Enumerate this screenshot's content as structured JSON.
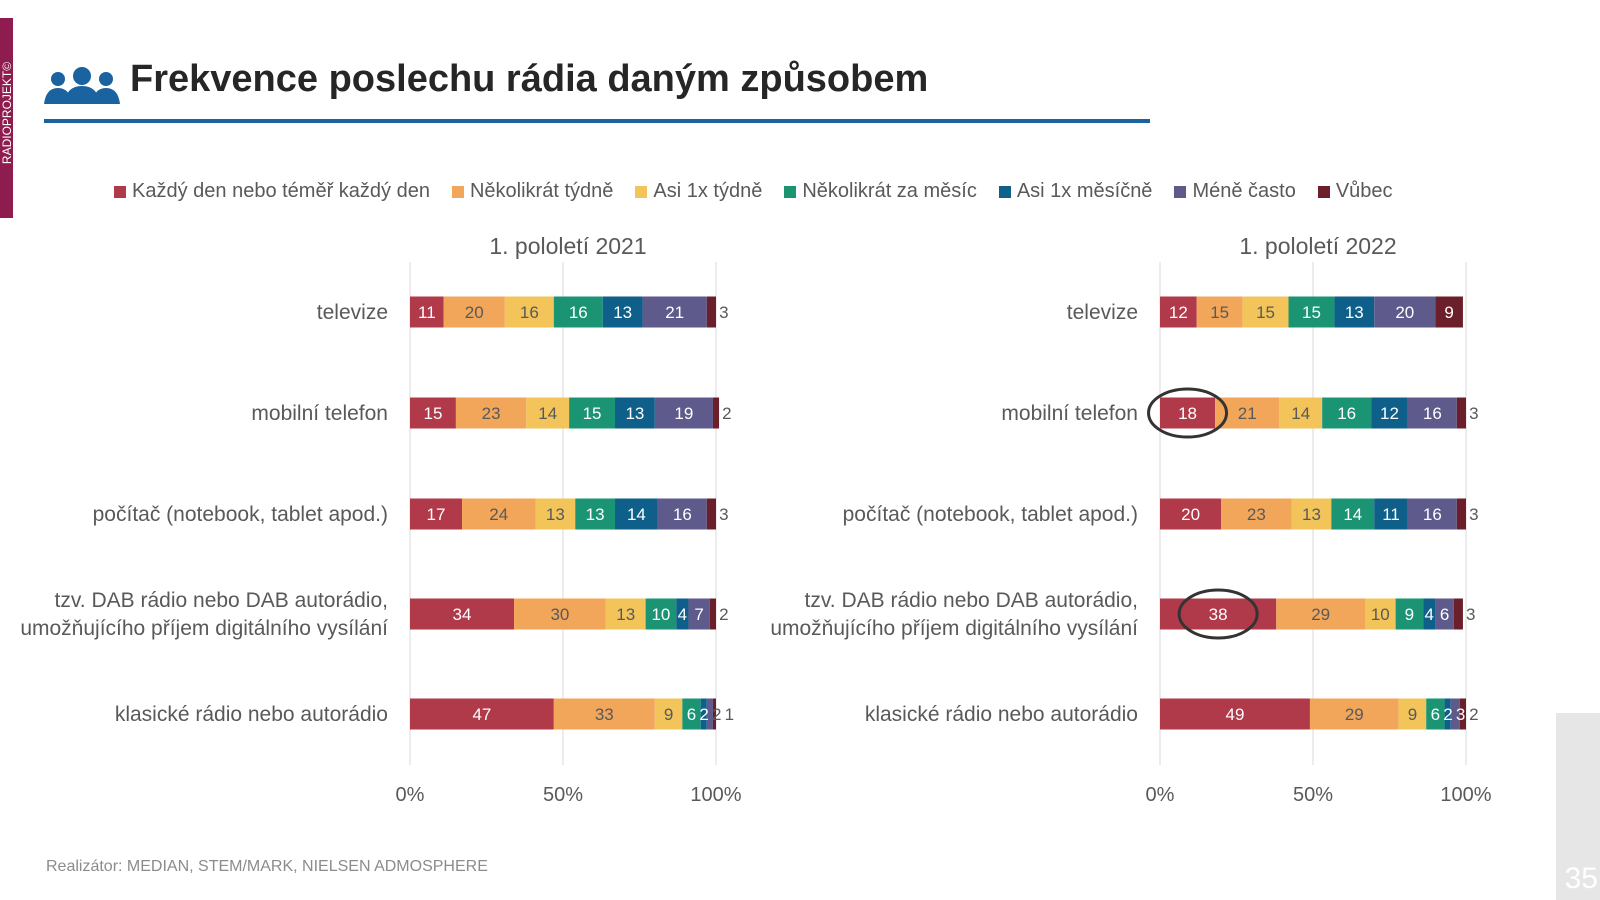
{
  "sidebar_label": "RADIOPROJEKT©",
  "title": "Frekvence poslechu rádia daným způsobem",
  "footer": "Realizátor: MEDIAN, STEM/MARK, NIELSEN ADMOSPHERE",
  "page_number": "35",
  "chart_data": [
    {
      "type": "bar",
      "orientation": "horizontal-stacked-100",
      "title": "1. pololetí 2021",
      "categories": [
        "televize",
        "mobilní telefon",
        "počítač (notebook, tablet apod.)",
        "tzv. DAB rádio nebo DAB autorádio,|umožňujícího příjem digitálního vysílání",
        "klasické rádio nebo autorádio"
      ],
      "series": [
        {
          "name": "Každý den nebo téměř každý den",
          "color": "#b0394a",
          "values": [
            11,
            15,
            17,
            34,
            47
          ]
        },
        {
          "name": "Několikrát týdně",
          "color": "#f2a65a",
          "values": [
            20,
            23,
            24,
            30,
            33
          ]
        },
        {
          "name": "Asi 1x týdně",
          "color": "#f2c45a",
          "values": [
            16,
            14,
            13,
            13,
            9
          ]
        },
        {
          "name": "Několikrát za měsíc",
          "color": "#1a9473",
          "values": [
            16,
            15,
            13,
            10,
            6
          ]
        },
        {
          "name": "Asi 1x měsíčně",
          "color": "#0e5f8a",
          "values": [
            13,
            13,
            14,
            4,
            2
          ]
        },
        {
          "name": "Méně často",
          "color": "#5e5a8c",
          "values": [
            21,
            19,
            16,
            7,
            2
          ]
        },
        {
          "name": "Vůbec",
          "color": "#6b1f2a",
          "values": [
            3,
            2,
            3,
            2,
            1
          ]
        }
      ],
      "xticks": [
        "0%",
        "50%",
        "100%"
      ],
      "xlim": [
        0,
        100
      ],
      "highlights": []
    },
    {
      "type": "bar",
      "orientation": "horizontal-stacked-100",
      "title": "1. pololetí 2022",
      "categories": [
        "televize",
        "mobilní telefon",
        "počítač (notebook, tablet apod.)",
        "tzv. DAB rádio nebo DAB autorádio,|umožňujícího příjem digitálního vysílání",
        "klasické rádio nebo autorádio"
      ],
      "series": [
        {
          "name": "Každý den nebo téměř každý den",
          "color": "#b0394a",
          "values": [
            12,
            18,
            20,
            38,
            49
          ]
        },
        {
          "name": "Několikrát týdně",
          "color": "#f2a65a",
          "values": [
            15,
            21,
            23,
            29,
            29
          ]
        },
        {
          "name": "Asi 1x týdně",
          "color": "#f2c45a",
          "values": [
            15,
            14,
            13,
            10,
            9
          ]
        },
        {
          "name": "Několikrát za měsíc",
          "color": "#1a9473",
          "values": [
            15,
            16,
            14,
            9,
            6
          ]
        },
        {
          "name": "Asi 1x měsíčně",
          "color": "#0e5f8a",
          "values": [
            13,
            12,
            11,
            4,
            2
          ]
        },
        {
          "name": "Méně často",
          "color": "#5e5a8c",
          "values": [
            20,
            16,
            16,
            6,
            3
          ]
        },
        {
          "name": "Vůbec",
          "color": "#6b1f2a",
          "values": [
            9,
            3,
            3,
            3,
            2
          ]
        }
      ],
      "xticks": [
        "0%",
        "50%",
        "100%"
      ],
      "xlim": [
        0,
        100
      ],
      "highlights": [
        {
          "series": 0,
          "category": 1
        },
        {
          "series": 0,
          "category": 3
        }
      ]
    }
  ],
  "legend_placement": "top"
}
